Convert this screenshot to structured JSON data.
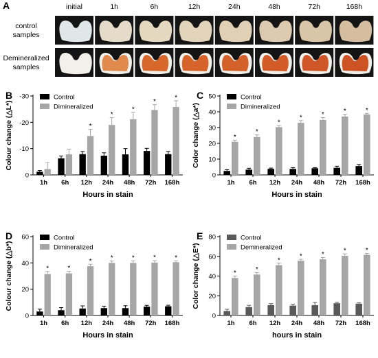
{
  "panel_a": {
    "letter": "A",
    "times": [
      "initial",
      "1h",
      "6h",
      "12h",
      "24h",
      "48h",
      "72h",
      "168h"
    ],
    "row_labels": [
      {
        "lines": [
          "control",
          "samples"
        ]
      },
      {
        "lines": [
          "Demineralized",
          "samples"
        ]
      }
    ],
    "colors": {
      "bg": "#141414",
      "control_tooth": [
        "#dfe7e9",
        "#e4dcc8",
        "#e4d8c0",
        "#e2d4bb",
        "#e0d0b5",
        "#dccbb0",
        "#d9c6a8",
        "#d5bea0"
      ],
      "demin_tooth": [
        "#c8dbe4",
        "#e08a4e",
        "#d8672b",
        "#d6642a",
        "#d4602a",
        "#d25b28",
        "#cf5626",
        "#cd5224"
      ]
    }
  },
  "chart_data": [
    {
      "type": "bar",
      "letter": "B",
      "categories": [
        "1h",
        "6h",
        "12h",
        "24h",
        "48h",
        "72h",
        "168h"
      ],
      "series": [
        {
          "name": "Control",
          "values": [
            -1.2,
            -6.3,
            -7.9,
            -7.3,
            -7.8,
            -9.1,
            -7.9
          ],
          "errors": [
            0.5,
            0.9,
            1.0,
            1.1,
            2.2,
            1.0,
            1.0
          ],
          "color": "#000000"
        },
        {
          "name": "Dimineralized",
          "values": [
            -2.2,
            -7.8,
            -14.8,
            -19,
            -21.2,
            -24.7,
            -25.8
          ],
          "errors": [
            2.5,
            2.0,
            2.5,
            2.8,
            2.6,
            2.0,
            2.4
          ],
          "color": "#a6a6a6"
        }
      ],
      "significance": [
        false,
        false,
        true,
        true,
        true,
        true,
        true
      ],
      "sig_mark": "*",
      "ylabel": "Colour change (△L*)",
      "xlabel": "Hours in stain",
      "ylim": [
        0,
        -30
      ],
      "yticks": [
        0,
        -10,
        -20,
        -30
      ],
      "ytick_labels": [
        "0",
        "-10",
        "-20",
        "-30"
      ],
      "legend": "top-left"
    },
    {
      "type": "bar",
      "letter": "C",
      "categories": [
        "1h",
        "6h",
        "12h",
        "24h",
        "48h",
        "72h",
        "168h"
      ],
      "series": [
        {
          "name": "Control",
          "values": [
            2.5,
            3.3,
            3.8,
            3.8,
            4.2,
            4.5,
            5.6
          ],
          "errors": [
            0.8,
            0.9,
            0.5,
            0.8,
            0.4,
            1.0,
            1.0
          ],
          "color": "#000000"
        },
        {
          "name": "Dimineralized",
          "values": [
            21,
            24,
            30.3,
            33,
            34.8,
            37,
            38.3
          ],
          "errors": [
            1.0,
            1.4,
            1.0,
            1.4,
            1.5,
            1.5,
            0.7
          ],
          "color": "#a6a6a6"
        }
      ],
      "significance": [
        true,
        true,
        true,
        true,
        true,
        true,
        true
      ],
      "sig_mark": "*",
      "ylabel": "Color change (△a*)",
      "xlabel": "Hours in stain",
      "ylim": [
        0,
        50
      ],
      "yticks": [
        0,
        10,
        20,
        30,
        40,
        50
      ],
      "ytick_labels": [
        "0",
        "10",
        "20",
        "30",
        "40",
        "50"
      ],
      "legend": "top-left"
    },
    {
      "type": "bar",
      "letter": "D",
      "categories": [
        "1h",
        "6h",
        "12h",
        "24h",
        "48h",
        "72h",
        "168h"
      ],
      "series": [
        {
          "name": "Control",
          "values": [
            3,
            4,
            5.3,
            5.6,
            5.6,
            6.7,
            7
          ],
          "errors": [
            1.8,
            2.0,
            2.0,
            1.5,
            1.8,
            1.0,
            0.8
          ],
          "color": "#000000"
        },
        {
          "name": "Dimineralized",
          "values": [
            31.5,
            32,
            37.5,
            40,
            40,
            40.2,
            40.5
          ],
          "errors": [
            2.0,
            1.6,
            1.5,
            1.5,
            1.6,
            1.5,
            1.0
          ],
          "color": "#a6a6a6"
        }
      ],
      "significance": [
        true,
        true,
        true,
        true,
        true,
        true,
        true
      ],
      "sig_mark": "*",
      "ylabel": "Colour change (△b*)",
      "xlabel": "Hours in stain",
      "ylim": [
        0,
        60
      ],
      "yticks": [
        0,
        20,
        40,
        60
      ],
      "ytick_labels": [
        "0",
        "20",
        "40",
        "60"
      ],
      "legend": "top-left"
    },
    {
      "type": "bar",
      "letter": "E",
      "categories": [
        "1h",
        "6h",
        "12h",
        "24h",
        "48h",
        "72h",
        "168h"
      ],
      "series": [
        {
          "name": "Control",
          "values": [
            4.5,
            8.5,
            10.5,
            10,
            10.5,
            12.4,
            12
          ],
          "errors": [
            1.8,
            1.8,
            1.5,
            1.5,
            2.8,
            1.2,
            1.0
          ],
          "color": "#595959"
        },
        {
          "name": "Demineralized",
          "values": [
            38,
            41.5,
            51,
            55.5,
            57,
            60.5,
            61.5
          ],
          "errors": [
            2.0,
            2.0,
            2.0,
            1.5,
            1.8,
            2.0,
            1.5
          ],
          "color": "#a6a6a6"
        }
      ],
      "significance": [
        true,
        true,
        true,
        true,
        true,
        true,
        true
      ],
      "sig_mark": "*",
      "ylabel": "Color change (△E*)",
      "xlabel": "hours in stain",
      "ylim": [
        0,
        80
      ],
      "yticks": [
        0,
        20,
        40,
        60,
        80
      ],
      "ytick_labels": [
        "0",
        "20",
        "40",
        "60",
        "80"
      ],
      "legend": "top-left"
    }
  ]
}
